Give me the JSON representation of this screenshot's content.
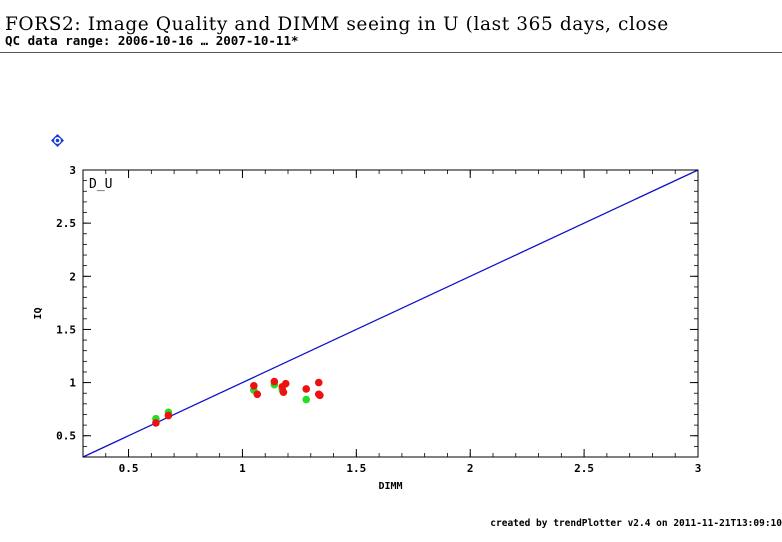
{
  "header": {
    "title": "FORS2: Image Quality and DIMM seeing in U (last 365 days, close",
    "subtitle": "QC data range: 2006-10-16 … 2007-10-11*"
  },
  "help_icon": {
    "icon": "help-diamond-icon",
    "color": "#1a3fd6"
  },
  "footer": {
    "text": "created by trendPlotter v2.4 on 2011-11-21T13:09:10"
  },
  "chart_data": {
    "type": "scatter",
    "xlabel": "DIMM",
    "ylabel": "IQ",
    "panel_label": "D_U",
    "xlim": [
      0.3,
      3.0
    ],
    "ylim": [
      0.3,
      3.0
    ],
    "xticks": [
      0.5,
      1,
      1.5,
      2,
      2.5,
      3
    ],
    "yticks": [
      0.5,
      1,
      1.5,
      2,
      2.5,
      3
    ],
    "reference_line": {
      "from": [
        0.3,
        0.3
      ],
      "to": [
        3.0,
        3.0
      ],
      "color": "#1010cc"
    },
    "series": [
      {
        "color": "#22dd22",
        "points": [
          [
            0.62,
            0.66
          ],
          [
            0.675,
            0.72
          ],
          [
            1.05,
            0.93
          ],
          [
            1.14,
            0.98
          ],
          [
            1.175,
            0.93
          ],
          [
            1.28,
            0.84
          ]
        ]
      },
      {
        "color": "#ee1111",
        "points": [
          [
            0.62,
            0.62
          ],
          [
            0.675,
            0.69
          ],
          [
            1.05,
            0.97
          ],
          [
            1.065,
            0.89
          ],
          [
            1.14,
            1.01
          ],
          [
            1.175,
            0.96
          ],
          [
            1.18,
            0.91
          ],
          [
            1.19,
            0.99
          ],
          [
            1.28,
            0.94
          ],
          [
            1.335,
            1.0
          ],
          [
            1.335,
            0.89
          ],
          [
            1.34,
            0.88
          ]
        ]
      }
    ]
  }
}
